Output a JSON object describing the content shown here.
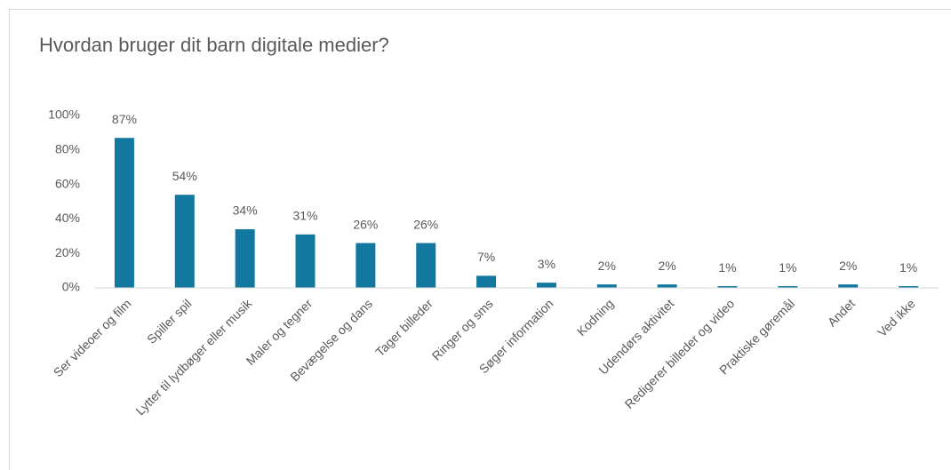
{
  "chart_data": {
    "type": "bar",
    "title": "Hvordan bruger dit barn digitale medier?",
    "categories": [
      "Ser videoer og film",
      "Spiller spil",
      "Lytter til lydbøger eller musik",
      "Maler og tegner",
      "Bevægelse og dans",
      "Tager billeder",
      "Ringer og sms",
      "Søger information",
      "Kodning",
      "Udendørs aktivitet",
      "Redigerer billeder og video",
      "Praktiske gøremål",
      "Andet",
      "Ved ikke"
    ],
    "values": [
      87,
      54,
      34,
      31,
      26,
      26,
      7,
      3,
      2,
      2,
      1,
      1,
      2,
      1
    ],
    "value_labels": [
      "87%",
      "54%",
      "34%",
      "31%",
      "26%",
      "26%",
      "7%",
      "3%",
      "2%",
      "2%",
      "1%",
      "1%",
      "2%",
      "1%"
    ],
    "color": "#12789f",
    "ylim": [
      0,
      100
    ],
    "yticks": [
      {
        "value": 0,
        "label": "0%"
      },
      {
        "value": 20,
        "label": "20%"
      },
      {
        "value": 40,
        "label": "40%"
      },
      {
        "value": 60,
        "label": "60%"
      },
      {
        "value": 80,
        "label": "80%"
      },
      {
        "value": 100,
        "label": "100%"
      }
    ],
    "grid": false
  }
}
